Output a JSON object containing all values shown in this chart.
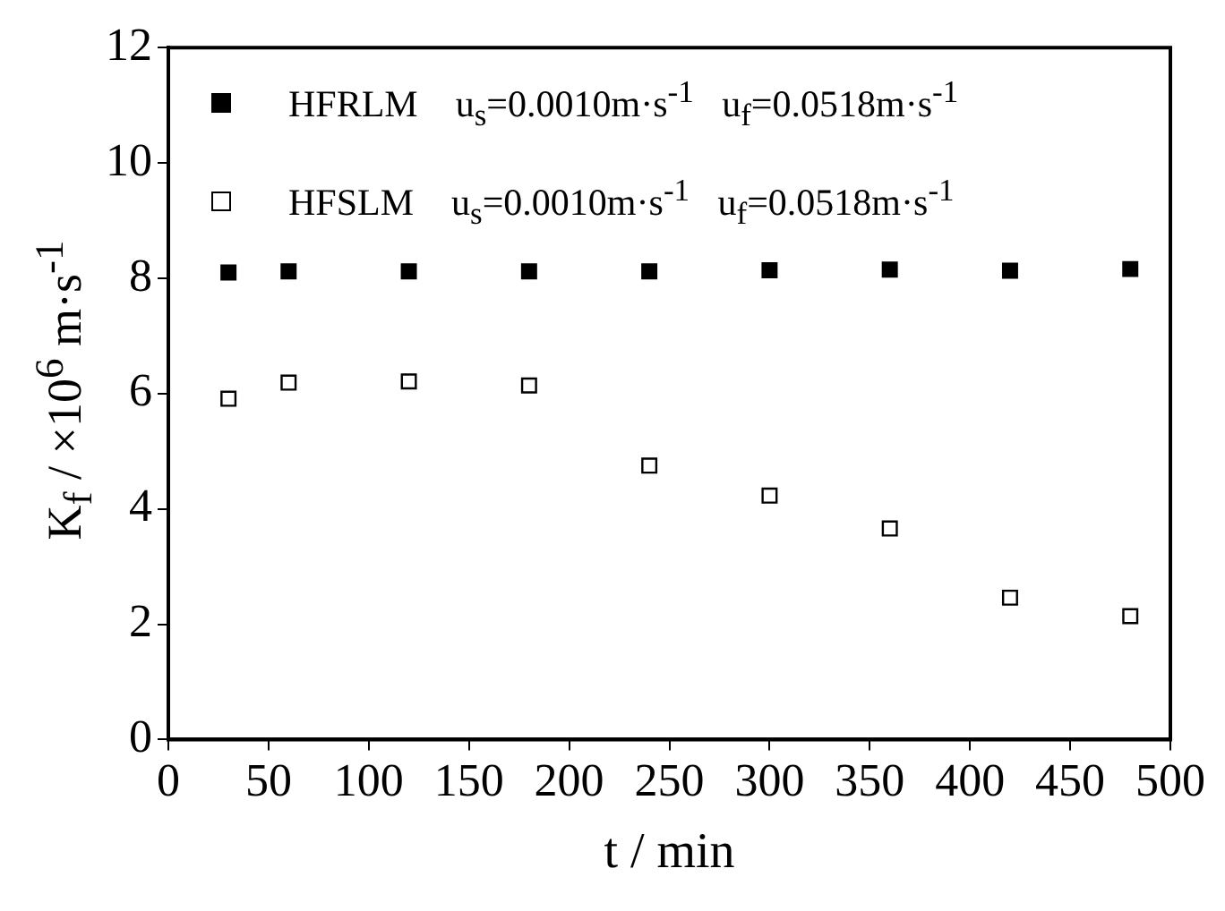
{
  "chart_data": {
    "type": "scatter",
    "xlabel": "t / min",
    "ylabel": "K$_{f}$ / ×10$^{6}$ m·s$^{-1}$",
    "x": [
      30,
      60,
      120,
      180,
      240,
      300,
      360,
      420,
      480
    ],
    "series": [
      {
        "name": "HFRLM    u$_{s}$=0.0010m·s$^{-1}$   u$_{f}$=0.0518m·s$^{-1}$",
        "color": "#000000",
        "values": [
          8.1,
          8.12,
          8.12,
          8.12,
          8.12,
          8.14,
          8.15,
          8.13,
          8.16
        ]
      },
      {
        "name": "HFSLM    u$_{s}$=0.0010m·s$^{-1}$   u$_{f}$=0.0518m·s$^{-1}$",
        "color": "#000000",
        "values": [
          5.91,
          6.19,
          6.21,
          6.14,
          4.75,
          4.23,
          3.66,
          2.46,
          2.14
        ]
      }
    ],
    "xlim": [
      0,
      500
    ],
    "xticks": [
      0,
      50,
      100,
      150,
      200,
      250,
      300,
      350,
      400,
      450,
      500
    ],
    "ylim": [
      0,
      12
    ],
    "yticks": [
      0,
      2,
      4,
      6,
      8,
      10,
      12
    ],
    "grid": false,
    "legend": "top left",
    "marker": "square"
  }
}
